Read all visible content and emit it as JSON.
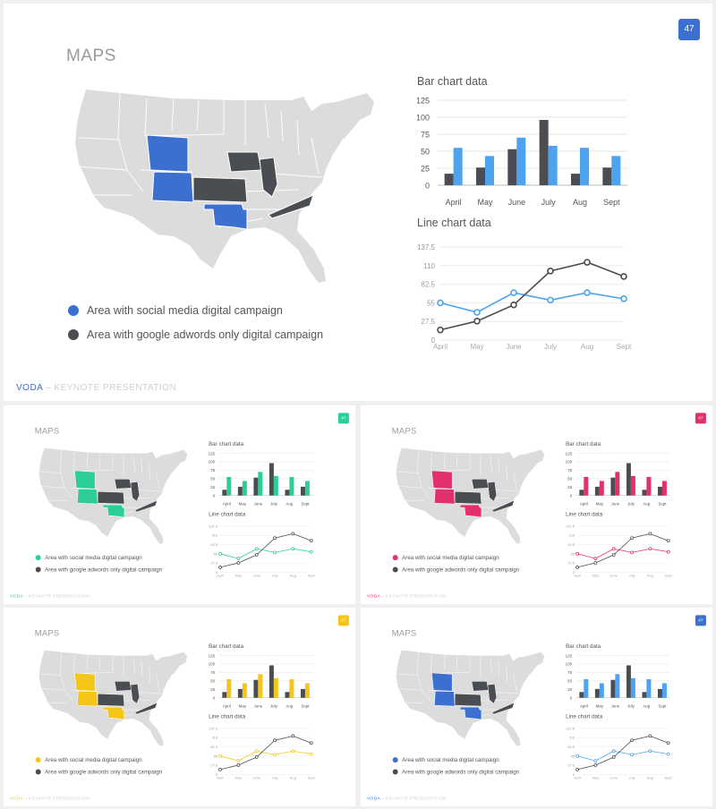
{
  "slide": {
    "title": "MAPS",
    "page_number": "47",
    "footer_brand": "VODA",
    "footer_separator": "–",
    "footer_subtitle": "KEYNOTE PRESENTATION"
  },
  "legend": {
    "item1": "Area with social media digital campaign",
    "item2": "Area with google adwords only digital campaign"
  },
  "colors": {
    "dark": "#4a4d52",
    "map_base": "#dcdcdc",
    "themes": [
      "#3b6fd0",
      "#2bcf95",
      "#e2306a",
      "#f5c518",
      "#3b6fd0"
    ],
    "bar_accents": [
      "#4da3f0",
      "#2bcf95",
      "#e2306a",
      "#f5c518",
      "#4da3f0"
    ]
  },
  "chart_data": [
    {
      "type": "bar",
      "title": "Bar chart data",
      "categories": [
        "April",
        "May",
        "June",
        "July",
        "Aug",
        "Sept"
      ],
      "series": [
        {
          "values": [
            17,
            26,
            53,
            96,
            17,
            26
          ]
        },
        {
          "values": [
            55,
            43,
            70,
            58,
            55,
            43
          ]
        }
      ],
      "yticks": [
        "0",
        "25",
        "50",
        "75",
        "100",
        "125"
      ],
      "ylim": [
        0,
        125
      ],
      "grid": true,
      "legend": "none"
    },
    {
      "type": "line",
      "title": "Line chart data",
      "categories": [
        "April",
        "May",
        "June",
        "July",
        "Aug",
        "Sept"
      ],
      "series": [
        {
          "values": [
            55,
            41,
            70,
            59,
            70,
            61
          ]
        },
        {
          "values": [
            15,
            28,
            52,
            102,
            115,
            94
          ]
        }
      ],
      "yticks": [
        "0",
        "27.5",
        "55",
        "82.5",
        "110",
        "137.5"
      ],
      "ylim": [
        0,
        137.5
      ],
      "grid": true,
      "legend": "none"
    }
  ]
}
